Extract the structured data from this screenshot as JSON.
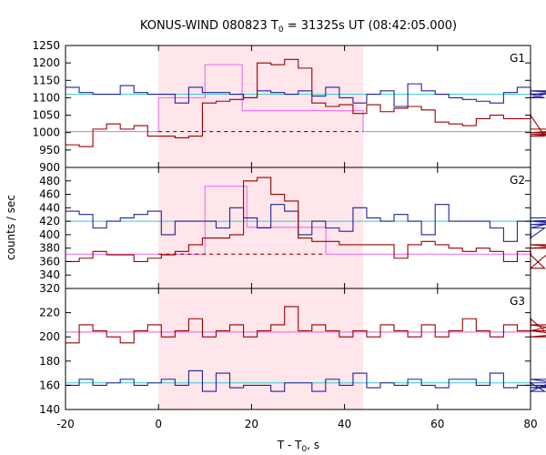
{
  "chart_data": {
    "type": "line",
    "title": {
      "main": "KONUS-WIND 080823 T",
      "sub": "0",
      "rest": " = 31325s UT (08:42:05.000)"
    },
    "xlabel": {
      "main": "T - T",
      "sub": "0",
      "rest": ", s"
    },
    "ylabel": "counts / sec",
    "xlim": [
      -20,
      80
    ],
    "x_ticks": [
      -20,
      0,
      20,
      40,
      60,
      80
    ],
    "highlight_interval": [
      0,
      44
    ],
    "bin_width": 2.944,
    "bin_start": -20,
    "colors": {
      "high_energy_light": "#ffe6ea",
      "red_series": "#990000",
      "blue_series": "#222299",
      "background_fit": "#33cccc",
      "block_fit": "#ee77ee"
    },
    "panels": [
      {
        "label": "G1",
        "ylim": [
          900,
          1250
        ],
        "y_ticks": [
          900,
          950,
          1000,
          1050,
          1100,
          1150,
          1200,
          1250
        ],
        "series": [
          {
            "color_key": "blue_series",
            "values": [
              1130,
              1115,
              1110,
              1110,
              1135,
              1115,
              1110,
              1110,
              1085,
              1130,
              1115,
              1115,
              1110,
              1100,
              1120,
              1115,
              1110,
              1120,
              1105,
              1130,
              1100,
              1085,
              1110,
              1120,
              1075,
              1140,
              1120,
              1110,
              1100,
              1095,
              1090,
              1085,
              1115,
              1130,
              1110,
              1100,
              1120,
              1110,
              1120,
              1110
            ]
          },
          {
            "color_key": "red_series",
            "values": [
              965,
              960,
              1010,
              1025,
              1010,
              1020,
              990,
              990,
              985,
              990,
              1085,
              1090,
              1095,
              1100,
              1200,
              1195,
              1210,
              1185,
              1085,
              1075,
              1080,
              1055,
              1080,
              1060,
              1070,
              1075,
              1065,
              1030,
              1025,
              1020,
              1040,
              1050,
              1040,
              1040,
              1050,
              990,
              995,
              1000,
              1010,
              1010
            ]
          }
        ],
        "background_level": 1110,
        "step_fit": [
          {
            "from": -20,
            "to": 0,
            "value": 1003
          },
          {
            "from": 0,
            "to": 10,
            "value": 1100
          },
          {
            "from": 10,
            "to": 18,
            "value": 1195
          },
          {
            "from": 18,
            "to": 44,
            "value": 1063
          },
          {
            "from": 44,
            "to": 80,
            "value": 1003
          }
        ],
        "dashed_level": {
          "from": 0,
          "to": 44,
          "value": 1003
        }
      },
      {
        "label": "G2",
        "ylim": [
          320,
          500
        ],
        "y_ticks": [
          320,
          340,
          360,
          380,
          400,
          420,
          440,
          460,
          480
        ],
        "series": [
          {
            "color_key": "blue_series",
            "values": [
              435,
              430,
              410,
              420,
              425,
              430,
              435,
              400,
              420,
              420,
              420,
              410,
              440,
              425,
              410,
              445,
              435,
              400,
              420,
              410,
              405,
              440,
              425,
              420,
              430,
              420,
              400,
              445,
              420,
              420,
              420,
              410,
              390,
              420,
              395,
              410,
              420,
              415,
              420,
              425
            ]
          },
          {
            "color_key": "red_series",
            "values": [
              360,
              365,
              375,
              370,
              370,
              360,
              365,
              370,
              375,
              385,
              395,
              395,
              400,
              480,
              485,
              460,
              450,
              395,
              390,
              390,
              385,
              385,
              385,
              385,
              365,
              385,
              390,
              385,
              380,
              375,
              380,
              375,
              360,
              375,
              370,
              350,
              385,
              380,
              380,
              385
            ]
          }
        ],
        "background_level": 420,
        "step_fit": [
          {
            "from": -20,
            "to": 10,
            "value": 371
          },
          {
            "from": 10,
            "to": 19,
            "value": 472
          },
          {
            "from": 19,
            "to": 36,
            "value": 411
          },
          {
            "from": 36,
            "to": 80,
            "value": 371
          }
        ],
        "dashed_level": {
          "from": 0,
          "to": 36,
          "value": 371
        }
      },
      {
        "label": "G3",
        "ylim": [
          140,
          240
        ],
        "y_ticks": [
          140,
          160,
          180,
          200,
          220
        ],
        "series": [
          {
            "color_key": "red_series",
            "values": [
              195,
              210,
              205,
              200,
              195,
              205,
              210,
              200,
              205,
              215,
              200,
              205,
              210,
              200,
              205,
              210,
              225,
              205,
              210,
              205,
              200,
              205,
              200,
              210,
              205,
              200,
              210,
              200,
              205,
              215,
              205,
              200,
              210,
              205,
              215,
              205,
              210,
              205,
              200,
              205
            ]
          },
          {
            "color_key": "blue_series",
            "values": [
              160,
              165,
              160,
              162,
              165,
              160,
              162,
              165,
              160,
              172,
              155,
              170,
              158,
              160,
              160,
              155,
              162,
              162,
              155,
              165,
              160,
              170,
              158,
              162,
              160,
              165,
              160,
              158,
              165,
              165,
              160,
              170,
              158,
              160,
              162,
              155,
              165,
              160,
              158,
              162
            ]
          }
        ],
        "background_level": 162,
        "step_fit": [
          {
            "from": -20,
            "to": 80,
            "value": 204
          }
        ],
        "dashed_level": null
      }
    ]
  }
}
